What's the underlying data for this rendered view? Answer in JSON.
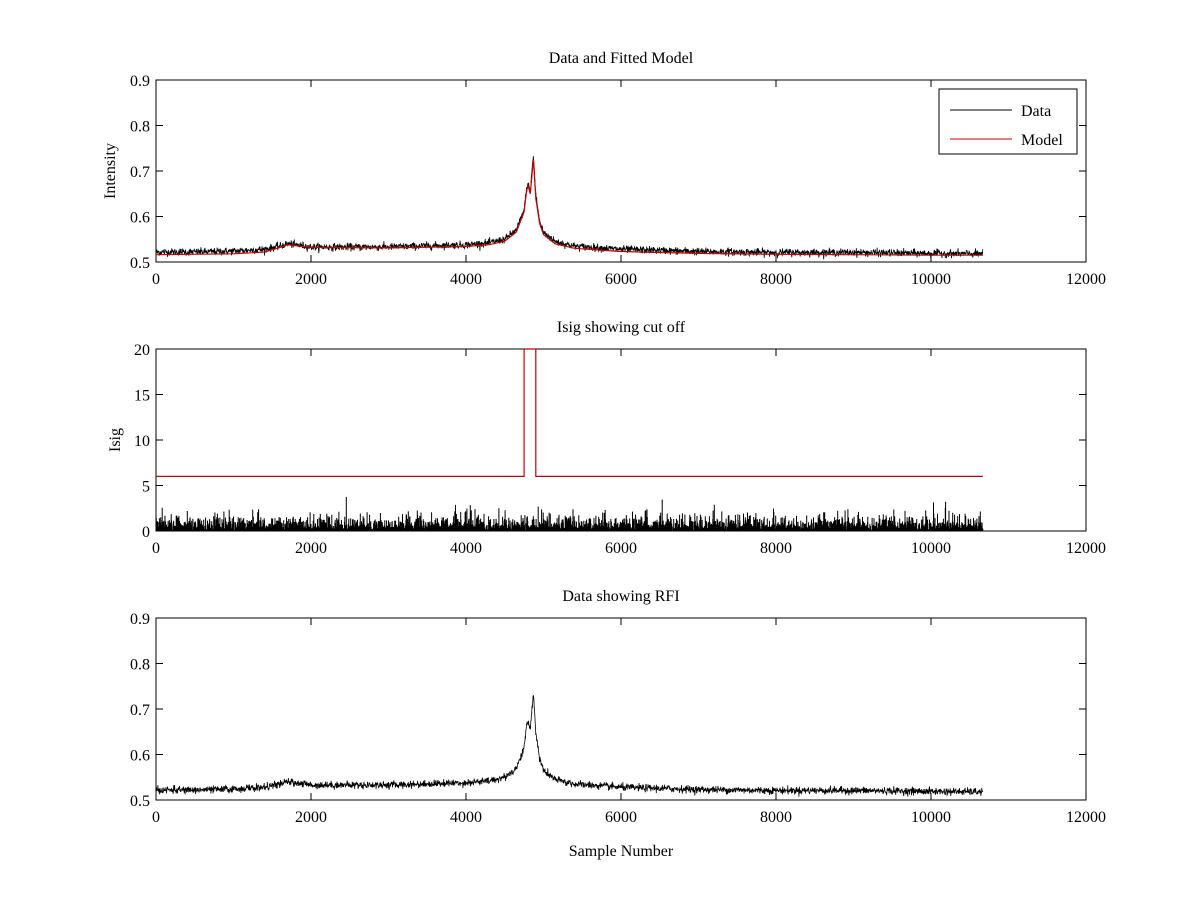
{
  "chart_data": [
    {
      "id": "top",
      "type": "line",
      "title": "Data and Fitted Model",
      "xlabel": "",
      "ylabel": "Intensity",
      "xlim": [
        0,
        12000
      ],
      "ylim": [
        0.5,
        0.9
      ],
      "x_ticks": [
        0,
        2000,
        4000,
        6000,
        8000,
        10000,
        12000
      ],
      "x_tick_labels": [
        "0",
        "2000",
        "4000",
        "6000",
        "8000",
        "10000",
        "12000"
      ],
      "y_ticks": [
        0.5,
        0.6,
        0.7,
        0.8,
        0.9
      ],
      "y_tick_labels": [
        "0.5",
        "0.6",
        "0.7",
        "0.8",
        "0.9"
      ],
      "legend": {
        "placement": "top-right",
        "entries": [
          "Data",
          "Model"
        ]
      },
      "series": [
        {
          "name": "Data",
          "color": "#000000",
          "style": "noisy",
          "noise": 0.004,
          "x": [
            0,
            500,
            1000,
            1400,
            1600,
            1700,
            1800,
            2000,
            3000,
            4000,
            4300,
            4500,
            4650,
            4750,
            4780,
            4800,
            4830,
            4850,
            4870,
            4900,
            4950,
            5000,
            5150,
            5400,
            6000,
            7000,
            8000,
            9000,
            10000,
            10670
          ],
          "y": [
            0.522,
            0.522,
            0.524,
            0.528,
            0.535,
            0.54,
            0.538,
            0.533,
            0.533,
            0.538,
            0.542,
            0.55,
            0.57,
            0.615,
            0.66,
            0.672,
            0.655,
            0.7,
            0.735,
            0.65,
            0.59,
            0.565,
            0.545,
            0.535,
            0.528,
            0.523,
            0.521,
            0.521,
            0.519,
            0.518
          ]
        },
        {
          "name": "Model",
          "color": "#cc0000",
          "style": "line",
          "x": [
            0,
            1000,
            1400,
            1600,
            1700,
            1800,
            2000,
            3000,
            4000,
            4300,
            4500,
            4650,
            4750,
            4780,
            4800,
            4830,
            4850,
            4870,
            4900,
            4950,
            5000,
            5150,
            5400,
            6000,
            7000,
            8000,
            9000,
            10000,
            10670
          ],
          "y": [
            0.516,
            0.518,
            0.522,
            0.532,
            0.538,
            0.536,
            0.532,
            0.531,
            0.534,
            0.538,
            0.546,
            0.566,
            0.61,
            0.655,
            0.668,
            0.65,
            0.69,
            0.725,
            0.64,
            0.585,
            0.56,
            0.54,
            0.53,
            0.523,
            0.519,
            0.517,
            0.516,
            0.515,
            0.515
          ]
        }
      ]
    },
    {
      "id": "middle",
      "type": "line",
      "title": "Isig showing cut off",
      "xlabel": "",
      "ylabel": "Isig",
      "xlim": [
        0,
        12000
      ],
      "ylim": [
        0,
        20
      ],
      "x_ticks": [
        0,
        2000,
        4000,
        6000,
        8000,
        10000,
        12000
      ],
      "x_tick_labels": [
        "0",
        "2000",
        "4000",
        "6000",
        "8000",
        "10000",
        "12000"
      ],
      "y_ticks": [
        0,
        5,
        10,
        15,
        20
      ],
      "y_tick_labels": [
        "0",
        "5",
        "10",
        "15",
        "20"
      ],
      "series": [
        {
          "name": "Isig",
          "color": "#000000",
          "style": "bars",
          "x": [
            0,
            10670
          ],
          "y": [
            0,
            0
          ],
          "typical_max": 2.2,
          "peak_max": 3.8
        },
        {
          "name": "Cut off",
          "color": "#cc0000",
          "style": "line",
          "x": [
            0,
            4750,
            4750,
            4900,
            4900,
            10670
          ],
          "y": [
            6,
            6,
            20,
            20,
            6,
            6
          ]
        }
      ]
    },
    {
      "id": "bottom",
      "type": "line",
      "title": "Data showing RFI",
      "xlabel": "Sample Number",
      "ylabel": "",
      "xlim": [
        0,
        12000
      ],
      "ylim": [
        0.5,
        0.9
      ],
      "x_ticks": [
        0,
        2000,
        4000,
        6000,
        8000,
        10000,
        12000
      ],
      "x_tick_labels": [
        "0",
        "2000",
        "4000",
        "6000",
        "8000",
        "10000",
        "12000"
      ],
      "y_ticks": [
        0.5,
        0.6,
        0.7,
        0.8,
        0.9
      ],
      "y_tick_labels": [
        "0.5",
        "0.6",
        "0.7",
        "0.8",
        "0.9"
      ],
      "series": [
        {
          "name": "Data",
          "color": "#000000",
          "style": "noisy",
          "noise": 0.004,
          "x": [
            0,
            500,
            1000,
            1400,
            1600,
            1700,
            1800,
            2000,
            3000,
            4000,
            4300,
            4500,
            4650,
            4750,
            4780,
            4800,
            4830,
            4850,
            4870,
            4900,
            4950,
            5000,
            5150,
            5400,
            6000,
            7000,
            8000,
            9000,
            10000,
            10670
          ],
          "y": [
            0.522,
            0.522,
            0.524,
            0.528,
            0.535,
            0.54,
            0.538,
            0.533,
            0.533,
            0.538,
            0.542,
            0.55,
            0.57,
            0.615,
            0.66,
            0.672,
            0.655,
            0.7,
            0.735,
            0.65,
            0.59,
            0.565,
            0.545,
            0.535,
            0.528,
            0.523,
            0.521,
            0.521,
            0.519,
            0.518
          ]
        }
      ]
    }
  ]
}
